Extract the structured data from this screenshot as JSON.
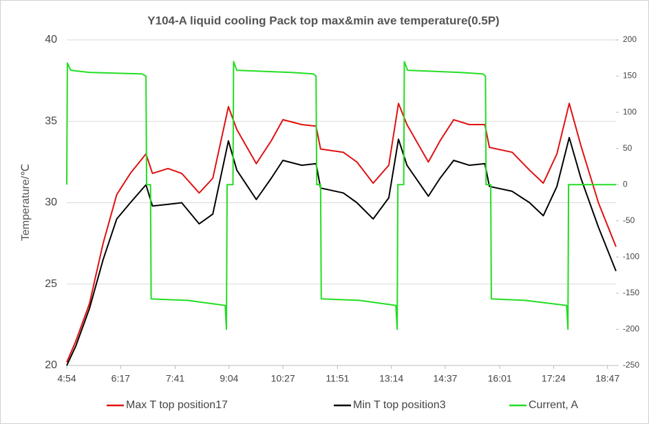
{
  "chart_data": {
    "type": "line",
    "title": "Y104-A liquid cooling Pack top max&min ave temperature(0.5P)",
    "ylabel": "Temperature/℃",
    "xlim": [
      294,
      1140
    ],
    "xticks": [
      {
        "value": 294,
        "label": "4:54"
      },
      {
        "value": 377,
        "label": "6:17"
      },
      {
        "value": 461,
        "label": "7:41"
      },
      {
        "value": 544,
        "label": "9:04"
      },
      {
        "value": 627,
        "label": "10:27"
      },
      {
        "value": 711,
        "label": "11:51"
      },
      {
        "value": 794,
        "label": "13:14"
      },
      {
        "value": 877,
        "label": "14:37"
      },
      {
        "value": 961,
        "label": "16:01"
      },
      {
        "value": 1044,
        "label": "17:24"
      },
      {
        "value": 1127,
        "label": "18:47"
      }
    ],
    "ylim": [
      20,
      40
    ],
    "yticks": [
      20,
      25,
      30,
      35,
      40
    ],
    "y2lim": [
      -250,
      200
    ],
    "y2ticks": [
      -250,
      -200,
      -150,
      -100,
      -50,
      0,
      50,
      100,
      150,
      200
    ],
    "grid": true,
    "legend": "bottom",
    "series": [
      {
        "name": "Max T top position17",
        "color": "#e01010",
        "x": [
          294,
          308,
          329,
          350,
          371,
          392,
          416,
          426,
          450,
          471,
          498,
          519,
          543,
          556,
          586,
          609,
          627,
          656,
          678,
          685,
          720,
          741,
          766,
          790,
          805,
          818,
          851,
          869,
          890,
          914,
          938,
          945,
          980,
          1007,
          1028,
          1049,
          1068,
          1086,
          1113,
          1140
        ],
        "values": [
          20.2,
          21.5,
          23.8,
          27.5,
          30.5,
          31.8,
          33.0,
          31.8,
          32.1,
          31.8,
          30.6,
          31.5,
          35.9,
          34.5,
          32.4,
          33.8,
          35.1,
          34.8,
          34.7,
          33.3,
          33.1,
          32.5,
          31.2,
          32.3,
          36.1,
          34.8,
          32.5,
          33.8,
          35.1,
          34.8,
          34.8,
          33.4,
          33.1,
          32.0,
          31.2,
          33.0,
          36.1,
          33.5,
          30.0,
          27.3
        ]
      },
      {
        "name": "Min T top position3",
        "color": "#000000",
        "x": [
          294,
          308,
          329,
          350,
          371,
          392,
          416,
          426,
          450,
          471,
          498,
          519,
          543,
          556,
          586,
          609,
          627,
          656,
          678,
          685,
          720,
          741,
          766,
          790,
          805,
          818,
          851,
          869,
          890,
          914,
          938,
          945,
          980,
          1007,
          1028,
          1049,
          1068,
          1086,
          1113,
          1140
        ],
        "values": [
          20.0,
          21.2,
          23.5,
          26.5,
          29.0,
          30.0,
          31.1,
          29.8,
          29.9,
          30.0,
          28.7,
          29.3,
          33.8,
          32.0,
          30.2,
          31.5,
          32.6,
          32.3,
          32.4,
          30.9,
          30.6,
          30.0,
          29.0,
          30.3,
          33.9,
          32.3,
          30.4,
          31.5,
          32.6,
          32.3,
          32.4,
          31.0,
          30.7,
          30.0,
          29.2,
          31.0,
          34.0,
          31.5,
          28.5,
          25.8
        ]
      },
      {
        "name": "Current, A",
        "color": "#22dd22",
        "axis": "y2",
        "x": [
          294,
          295,
          300,
          330,
          410,
          416,
          417,
          423,
          424,
          480,
          538,
          540,
          541,
          550,
          551,
          556,
          640,
          674,
          678,
          679,
          685,
          686,
          745,
          801,
          803,
          804,
          813,
          814,
          819,
          900,
          935,
          939,
          940,
          947,
          948,
          1000,
          1064,
          1066,
          1067,
          1140
        ],
        "values": [
          0,
          168,
          158,
          155,
          153,
          150,
          0,
          0,
          -158,
          -160,
          -167,
          -200,
          0,
          0,
          170,
          158,
          155,
          153,
          150,
          0,
          0,
          -158,
          -160,
          -167,
          -200,
          0,
          0,
          170,
          158,
          155,
          153,
          150,
          0,
          0,
          -158,
          -160,
          -167,
          -200,
          0,
          0
        ]
      }
    ]
  }
}
